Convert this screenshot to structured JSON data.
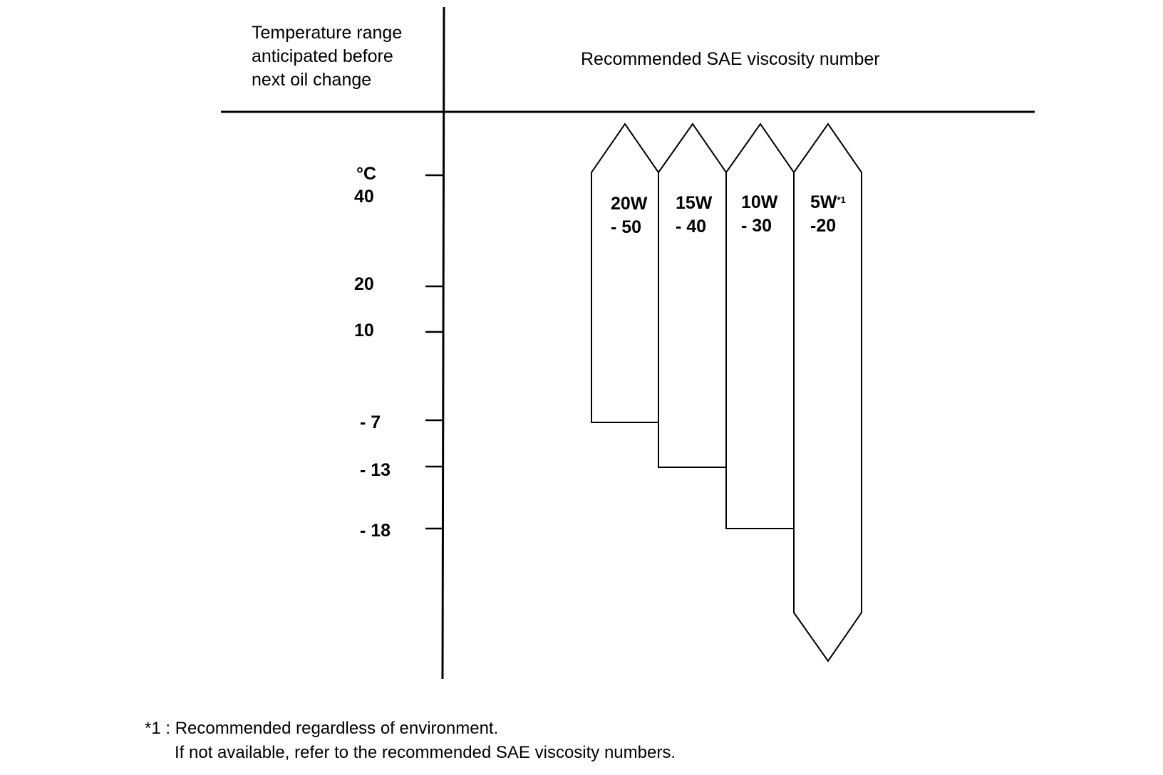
{
  "header": {
    "left_lines": [
      "Temperature range",
      "anticipated before",
      "next oil change"
    ],
    "right": "Recommended SAE viscosity number"
  },
  "axis": {
    "unit": "°C",
    "ticks": [
      "40",
      "20",
      "10",
      "- 7",
      "- 13",
      "- 18"
    ]
  },
  "grades": [
    {
      "line1": "20W",
      "line2": "- 50",
      "min_c": -7,
      "max_c": 40
    },
    {
      "line1": "15W",
      "line2": "- 40",
      "min_c": -13,
      "max_c": 40
    },
    {
      "line1": "10W",
      "line2": "- 30",
      "min_c": -18,
      "max_c": 40
    },
    {
      "line1": "5W",
      "sup": "*1",
      "line2": "-20",
      "min_c": null,
      "max_c": 40
    }
  ],
  "footnote": {
    "line1": "*1 : Recommended regardless of environment.",
    "line2": "If not available, refer to the recommended SAE viscosity numbers."
  }
}
